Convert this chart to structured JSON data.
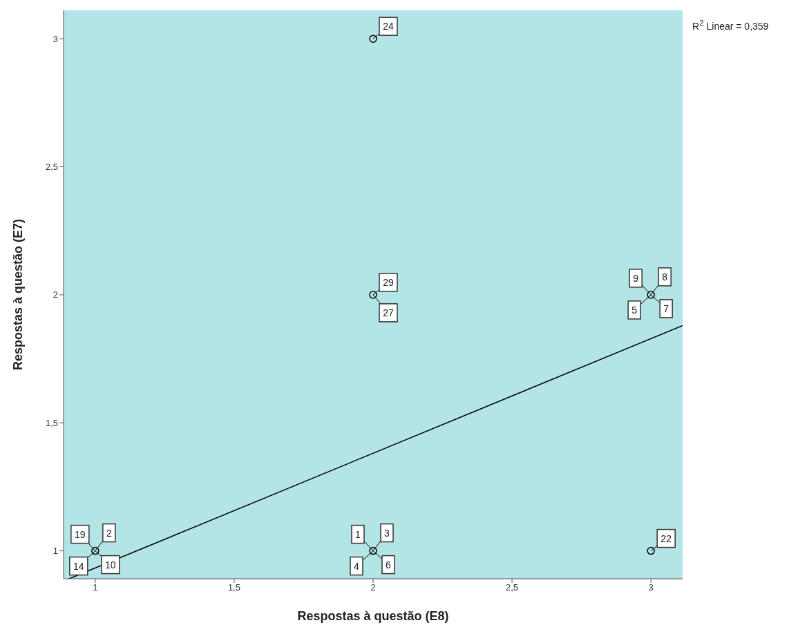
{
  "chart_data": {
    "type": "scatter",
    "xlabel": "Respostas à questão (E8)",
    "ylabel": "Respostas à questão (E7)",
    "xlim": [
      0.886,
      3.114
    ],
    "ylim": [
      0.891,
      3.111
    ],
    "xticks": [
      1,
      {
        "value": 1.5,
        "label": "1,5"
      },
      2,
      {
        "value": 2.5,
        "label": "2,5"
      },
      3
    ],
    "yticks": [
      1,
      {
        "value": 1.5,
        "label": "1,5"
      },
      2,
      {
        "value": 2.5,
        "label": "2,5"
      },
      3
    ],
    "grid": false,
    "legend": false,
    "series": [
      {
        "marker": "circle",
        "color": "#000000",
        "x": [
          1,
          2,
          3,
          2,
          3,
          2
        ],
        "values": [
          1,
          1,
          1,
          2,
          2,
          3
        ]
      },
      {
        "type": "line",
        "marker": "none",
        "color": "#000000",
        "x": [
          0.906,
          3.114
        ],
        "values": [
          0.891,
          1.88
        ]
      }
    ],
    "annotations": [
      {
        "text": "19",
        "x": 1,
        "y": 1
      },
      {
        "text": "2",
        "x": 1,
        "y": 1
      },
      {
        "text": "14",
        "x": 1,
        "y": 1
      },
      {
        "text": "10",
        "x": 1,
        "y": 1
      },
      {
        "text": "1",
        "x": 2,
        "y": 1
      },
      {
        "text": "3",
        "x": 2,
        "y": 1
      },
      {
        "text": "4",
        "x": 2,
        "y": 1
      },
      {
        "text": "6",
        "x": 2,
        "y": 1
      },
      {
        "text": "9",
        "x": 3,
        "y": 2
      },
      {
        "text": "8",
        "x": 3,
        "y": 2
      },
      {
        "text": "5",
        "x": 3,
        "y": 2
      },
      {
        "text": "7",
        "x": 3,
        "y": 2
      },
      {
        "text": "29",
        "x": 2,
        "y": 2
      },
      {
        "text": "27",
        "x": 2,
        "y": 2
      },
      {
        "text": "24",
        "x": 2,
        "y": 3
      },
      {
        "text": "22",
        "x": 3,
        "y": 1
      },
      "R$^{2}$ Linear = 0,359"
    ]
  }
}
